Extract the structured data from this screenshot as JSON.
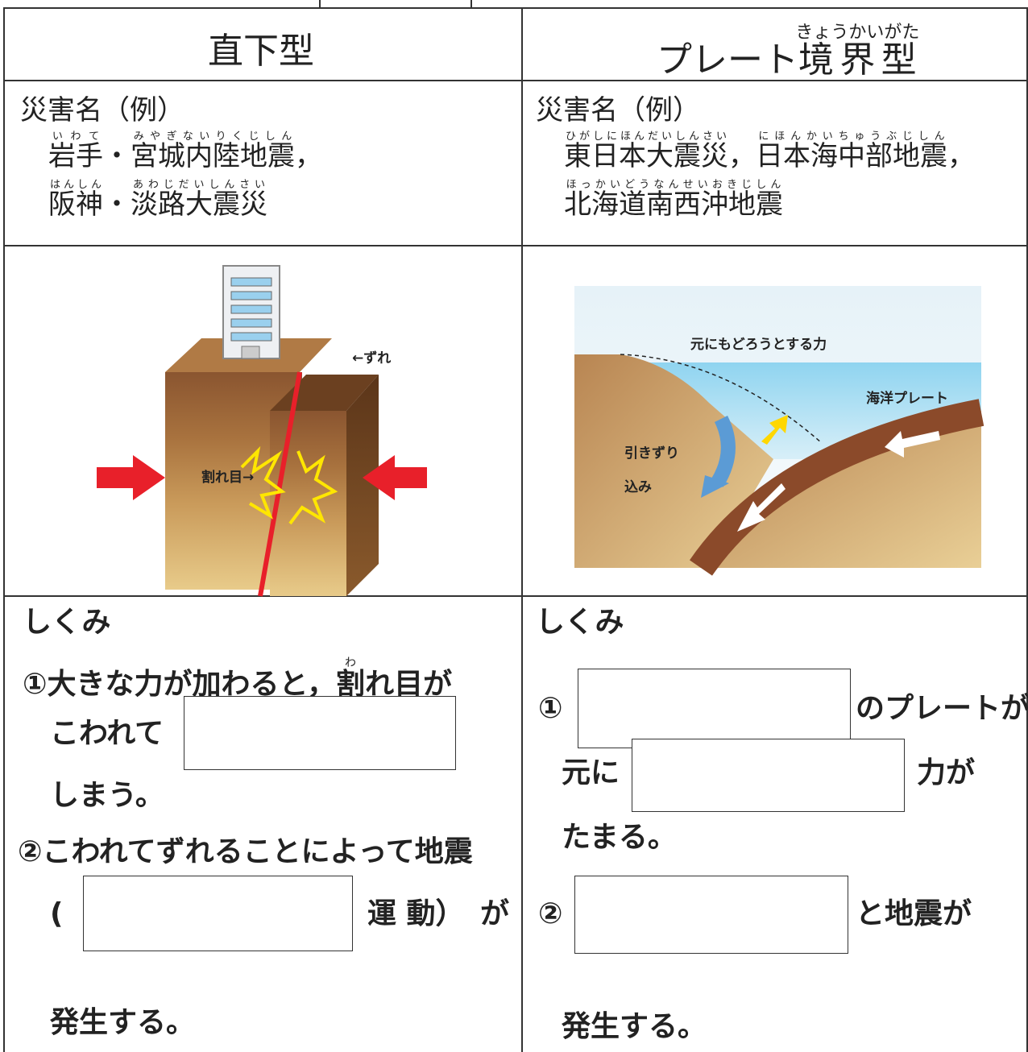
{
  "header": {
    "left": "直下型",
    "right": [
      {
        "text": "プレート"
      },
      {
        "text": "境界型",
        "ruby": "きょうかいがた"
      }
    ]
  },
  "examples": {
    "left": {
      "label": "災害名（例）",
      "lines": [
        [
          {
            "text": "岩手",
            "ruby": "いわて"
          },
          {
            "text": "・"
          },
          {
            "text": "宮城内陸地震",
            "ruby": "みやぎないりくじしん"
          },
          {
            "text": "，"
          }
        ],
        [
          {
            "text": "阪神",
            "ruby": "はんしん"
          },
          {
            "text": "・"
          },
          {
            "text": "淡路大震災",
            "ruby": "あわじだいしんさい"
          }
        ]
      ]
    },
    "right": {
      "label": "災害名（例）",
      "lines": [
        [
          {
            "text": "東日本大震災",
            "ruby": "ひがしにほんだいしんさい"
          },
          {
            "text": "，"
          },
          {
            "text": "日本海中部地震",
            "ruby": "にほんかいちゅうぶじしん"
          },
          {
            "text": "，"
          }
        ],
        [
          {
            "text": "北海道南西沖地震",
            "ruby": "ほっかいどうなんせいおきじしん"
          }
        ]
      ]
    }
  },
  "figures": {
    "left": {
      "shift": "←ずれ",
      "crack": "割れ目→"
    },
    "right": {
      "restore": "元にもどろうとする力",
      "oceanic": "海洋プレート",
      "drag1": "引きずり",
      "drag2": "込み"
    }
  },
  "mechanism": {
    "left": {
      "title": "しくみ",
      "l1a": "①大きな力が加わると，",
      "l1b": "割",
      "l1b_ruby": "わ",
      "l1c": "れ目が",
      "l2": "こわれて",
      "l3": "しまう。",
      "l4": "②こわれてずれることによって地震",
      "l5a": "(",
      "l5b": "運 動）",
      "l5c": "が",
      "l6": "発生する。"
    },
    "right": {
      "title": "しくみ",
      "r1a": "①",
      "r1b": "のプレートが",
      "r2a": "元に",
      "r2b": "力が",
      "r3": "たまる。",
      "r4a": "②",
      "r4b": "と地震が",
      "r5": "発生する。"
    }
  }
}
